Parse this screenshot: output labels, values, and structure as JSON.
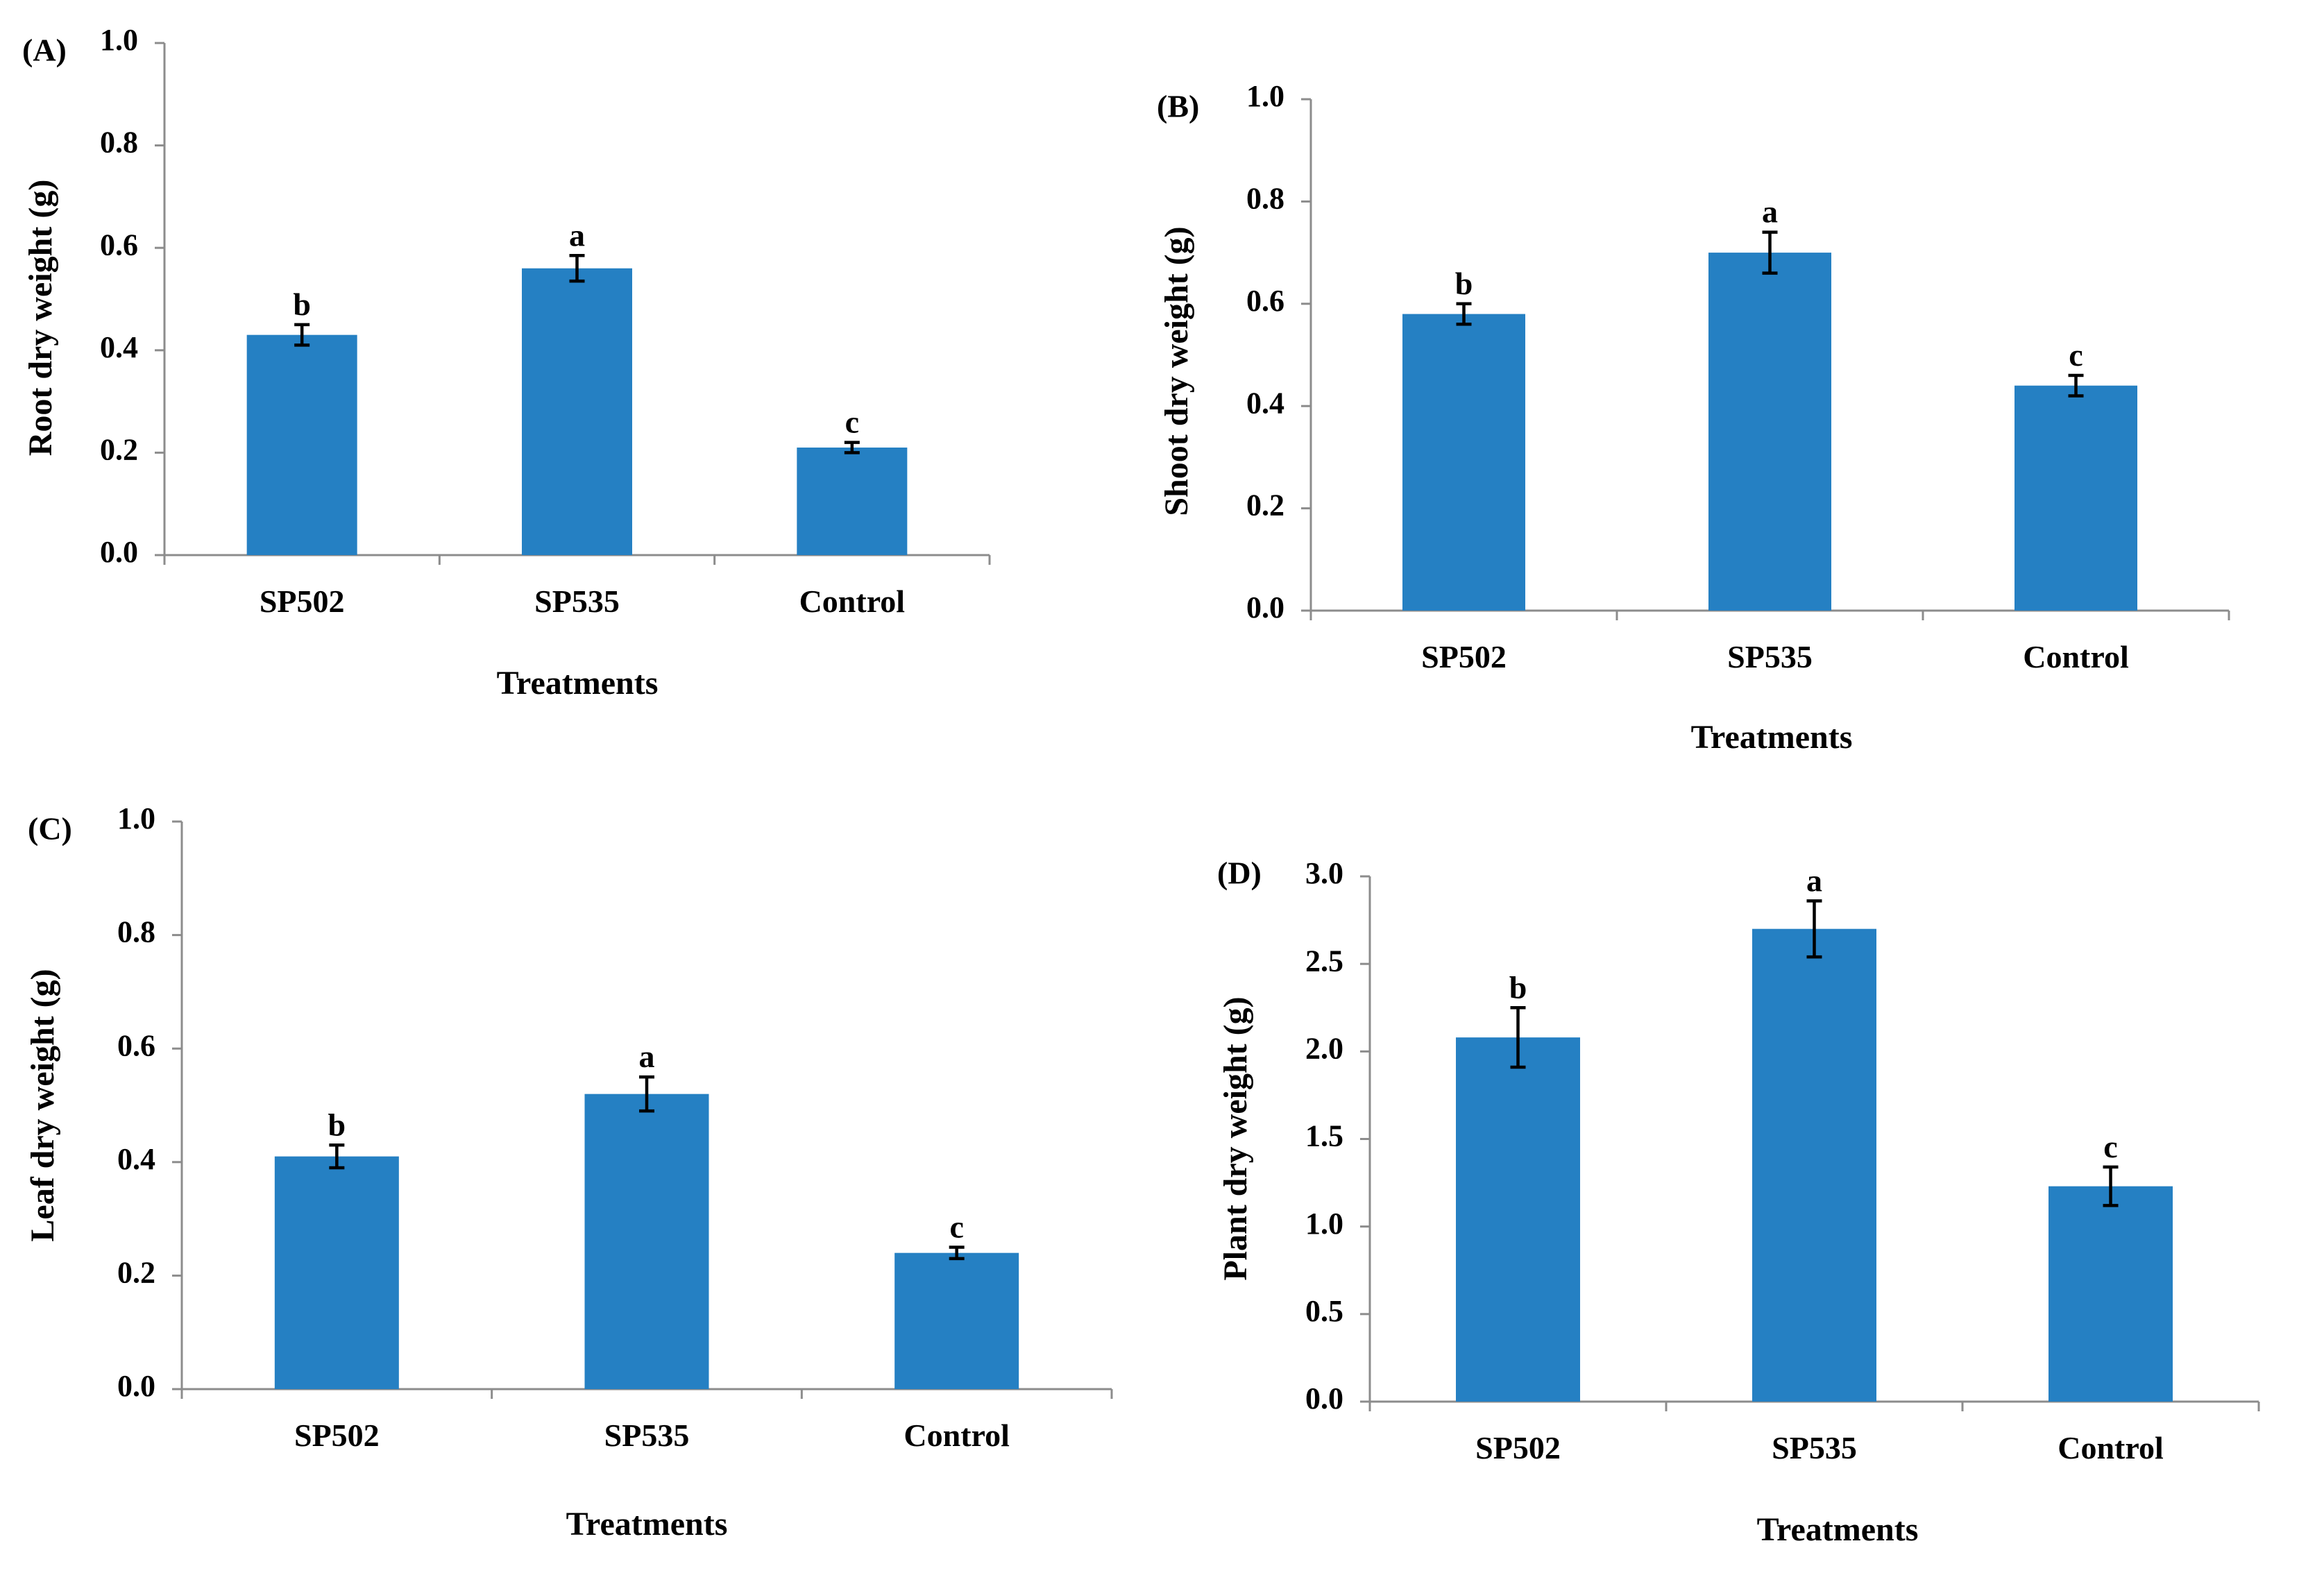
{
  "colors": {
    "bar": "#2580c3",
    "axis": "#8c8c8c",
    "text": "#000000"
  },
  "chart_data": [
    {
      "type": "bar",
      "panel_label": "(A)",
      "categories": [
        "SP502",
        "SP535",
        "Control"
      ],
      "values": [
        0.43,
        0.56,
        0.21
      ],
      "errors": [
        0.02,
        0.025,
        0.01
      ],
      "significance": [
        "b",
        "a",
        "c"
      ],
      "xlabel": "Treatments",
      "ylabel": "Root dry weight (g)",
      "ylim": [
        0,
        1.0
      ],
      "yticks": [
        "0.0",
        "0.2",
        "0.4",
        "0.6",
        "0.8",
        "1.0"
      ],
      "grid": false,
      "legend": "none"
    },
    {
      "type": "bar",
      "panel_label": "(B)",
      "categories": [
        "SP502",
        "SP535",
        "Control"
      ],
      "values": [
        0.58,
        0.7,
        0.44
      ],
      "errors": [
        0.02,
        0.04,
        0.02
      ],
      "significance": [
        "b",
        "a",
        "c"
      ],
      "xlabel": "Treatments",
      "ylabel": "Shoot dry weight (g)",
      "ylim": [
        0,
        1.0
      ],
      "yticks": [
        "0.0",
        "0.2",
        "0.4",
        "0.6",
        "0.8",
        "1.0"
      ],
      "grid": false,
      "legend": "none"
    },
    {
      "type": "bar",
      "panel_label": "(C)",
      "categories": [
        "SP502",
        "SP535",
        "Control"
      ],
      "values": [
        0.41,
        0.52,
        0.24
      ],
      "errors": [
        0.02,
        0.03,
        0.01
      ],
      "significance": [
        "b",
        "a",
        "c"
      ],
      "xlabel": "Treatments",
      "ylabel": "Leaf dry weight (g)",
      "ylim": [
        0,
        1.0
      ],
      "yticks": [
        "0.0",
        "0.2",
        "0.4",
        "0.6",
        "0.8",
        "1.0"
      ],
      "grid": false,
      "legend": "none"
    },
    {
      "type": "bar",
      "panel_label": "(D)",
      "categories": [
        "SP502",
        "SP535",
        "Control"
      ],
      "values": [
        2.08,
        2.7,
        1.23
      ],
      "errors": [
        0.17,
        0.16,
        0.11
      ],
      "significance": [
        "b",
        "a",
        "c"
      ],
      "xlabel": "Treatments",
      "ylabel": "Plant dry weight (g)",
      "ylim": [
        0,
        3.0
      ],
      "yticks": [
        "0.0",
        "0.5",
        "1.0",
        "1.5",
        "2.0",
        "2.5",
        "3.0"
      ],
      "grid": false,
      "legend": "none"
    }
  ]
}
